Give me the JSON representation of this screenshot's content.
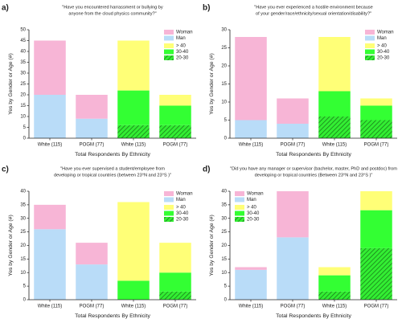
{
  "chart_data": [
    {
      "type": "bar",
      "stacked": true,
      "panel": "a)",
      "title": [
        "\"Have you encountered harrassment or bullying by",
        "anyone from the cloud physics community?\""
      ],
      "ylabel": "Yes by Gender or Age (#)",
      "xlabel": "Total Respondents By Ethnicity",
      "categories": [
        "White (115)",
        "POGM (77)",
        "White (115)",
        "POGM (77)"
      ],
      "ylim": [
        0,
        50
      ],
      "yticks": [
        0,
        5,
        10,
        15,
        20,
        25,
        30,
        35,
        40,
        45,
        50
      ],
      "legend": "upper right",
      "series": [
        {
          "name": "Man",
          "color": "#b9dcf8",
          "values": [
            20,
            9,
            null,
            null
          ]
        },
        {
          "name": "Woman",
          "color": "#f7b5d6",
          "values": [
            25,
            11,
            null,
            null
          ]
        },
        {
          "name": "20-30",
          "color": "#33ee33",
          "hatch": true,
          "values": [
            null,
            null,
            6,
            6
          ]
        },
        {
          "name": "30-40",
          "color": "#33ff33",
          "values": [
            null,
            null,
            16,
            9
          ]
        },
        {
          "name": "> 40",
          "color": "#ffff77",
          "values": [
            null,
            null,
            23,
            5
          ]
        }
      ]
    },
    {
      "type": "bar",
      "stacked": true,
      "panel": "b)",
      "title": [
        "\"Have you ever experienced a hostile environment because",
        "of your gender/race/ethnicity/sexual orientation/disability?\""
      ],
      "ylabel": "Yes by Gender or Age (#)",
      "xlabel": "Total Respondents By Ethnicity",
      "categories": [
        "White (115)",
        "POGM (77)",
        "White (115)",
        "POGM (77)"
      ],
      "ylim": [
        0,
        30
      ],
      "yticks": [
        0,
        5,
        10,
        15,
        20,
        25,
        30
      ],
      "legend": "upper right",
      "series": [
        {
          "name": "Man",
          "color": "#b9dcf8",
          "values": [
            5,
            4,
            null,
            null
          ]
        },
        {
          "name": "Woman",
          "color": "#f7b5d6",
          "values": [
            23,
            7,
            null,
            null
          ]
        },
        {
          "name": "20-30",
          "color": "#33ee33",
          "hatch": true,
          "values": [
            null,
            null,
            6,
            5
          ]
        },
        {
          "name": "30-40",
          "color": "#33ff33",
          "values": [
            null,
            null,
            7,
            4
          ]
        },
        {
          "name": "> 40",
          "color": "#ffff77",
          "values": [
            null,
            null,
            15,
            2
          ]
        }
      ]
    },
    {
      "type": "bar",
      "stacked": true,
      "panel": "c)",
      "title": [
        "\"Have you ever supervised a student/employee from",
        "developing or tropical countries (between 23°N and 23°S )\""
      ],
      "ylabel": "Yes by Gender or Age (#)",
      "xlabel": "Total Respondents By Ethnicity",
      "categories": [
        "White (115)",
        "POGM (77)",
        "White (115)",
        "POGM (77)"
      ],
      "ylim": [
        0,
        40
      ],
      "yticks": [
        0,
        5,
        10,
        15,
        20,
        25,
        30,
        35,
        40
      ],
      "legend": "upper right",
      "series": [
        {
          "name": "Man",
          "color": "#b9dcf8",
          "values": [
            26,
            13,
            null,
            null
          ]
        },
        {
          "name": "Woman",
          "color": "#f7b5d6",
          "values": [
            9,
            8,
            null,
            null
          ]
        },
        {
          "name": "20-30",
          "color": "#33ee33",
          "hatch": true,
          "values": [
            null,
            null,
            0,
            3
          ]
        },
        {
          "name": "30-40",
          "color": "#33ff33",
          "values": [
            null,
            null,
            7,
            7
          ]
        },
        {
          "name": "> 40",
          "color": "#ffff77",
          "values": [
            null,
            null,
            29,
            11
          ]
        }
      ]
    },
    {
      "type": "bar",
      "stacked": true,
      "panel": "d)",
      "title": [
        "\"Did you have any manager or supervisor (bachelor, master, PhD and postdoc) from",
        "developing or tropical countries (Between 23°N and 23°S )\""
      ],
      "ylabel": "Yes by Gender or Age (#)",
      "xlabel": "Total Respondents By Ethnicity",
      "categories": [
        "White (115)",
        "POGM (77)",
        "White (115)",
        "POGM (77)"
      ],
      "ylim": [
        0,
        40
      ],
      "yticks": [
        0,
        5,
        10,
        15,
        20,
        25,
        30,
        35,
        40
      ],
      "legend": "upper left",
      "series": [
        {
          "name": "Man",
          "color": "#b9dcf8",
          "values": [
            11,
            23,
            null,
            null
          ]
        },
        {
          "name": "Woman",
          "color": "#f7b5d6",
          "values": [
            1,
            17,
            null,
            null
          ]
        },
        {
          "name": "20-30",
          "color": "#33ee33",
          "hatch": true,
          "values": [
            null,
            null,
            3,
            19
          ]
        },
        {
          "name": "30-40",
          "color": "#33ff33",
          "values": [
            null,
            null,
            6,
            14
          ]
        },
        {
          "name": "> 40",
          "color": "#ffff77",
          "values": [
            null,
            null,
            3,
            7
          ]
        }
      ]
    }
  ]
}
